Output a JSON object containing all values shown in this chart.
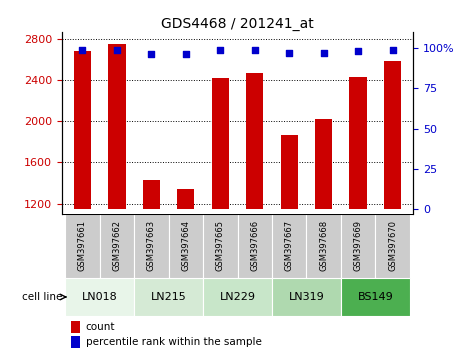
{
  "title": "GDS4468 / 201241_at",
  "samples": [
    "GSM397661",
    "GSM397662",
    "GSM397663",
    "GSM397664",
    "GSM397665",
    "GSM397666",
    "GSM397667",
    "GSM397668",
    "GSM397669",
    "GSM397670"
  ],
  "counts": [
    2680,
    2750,
    1430,
    1340,
    2420,
    2470,
    1870,
    2020,
    2430,
    2590
  ],
  "percentile_ranks": [
    99,
    99,
    96,
    96,
    99,
    99,
    97,
    97,
    98,
    99
  ],
  "cell_line_groups": [
    {
      "name": "LN018",
      "start": 0,
      "end": 1,
      "color": "#e8f5e9"
    },
    {
      "name": "LN215",
      "start": 2,
      "end": 3,
      "color": "#d5ead5"
    },
    {
      "name": "LN229",
      "start": 4,
      "end": 5,
      "color": "#c8e6c9"
    },
    {
      "name": "LN319",
      "start": 6,
      "end": 7,
      "color": "#afd9af"
    },
    {
      "name": "BS149",
      "start": 8,
      "end": 9,
      "color": "#4caf50"
    }
  ],
  "ylim_left": [
    1100,
    2870
  ],
  "ylim_right": [
    -3,
    110
  ],
  "yticks_left": [
    1200,
    1600,
    2000,
    2400,
    2800
  ],
  "yticks_right": [
    0,
    25,
    50,
    75,
    100
  ],
  "bar_color": "#cc0000",
  "dot_color": "#0000cc",
  "sample_box_color": "#cccccc",
  "count_baseline": 1150
}
